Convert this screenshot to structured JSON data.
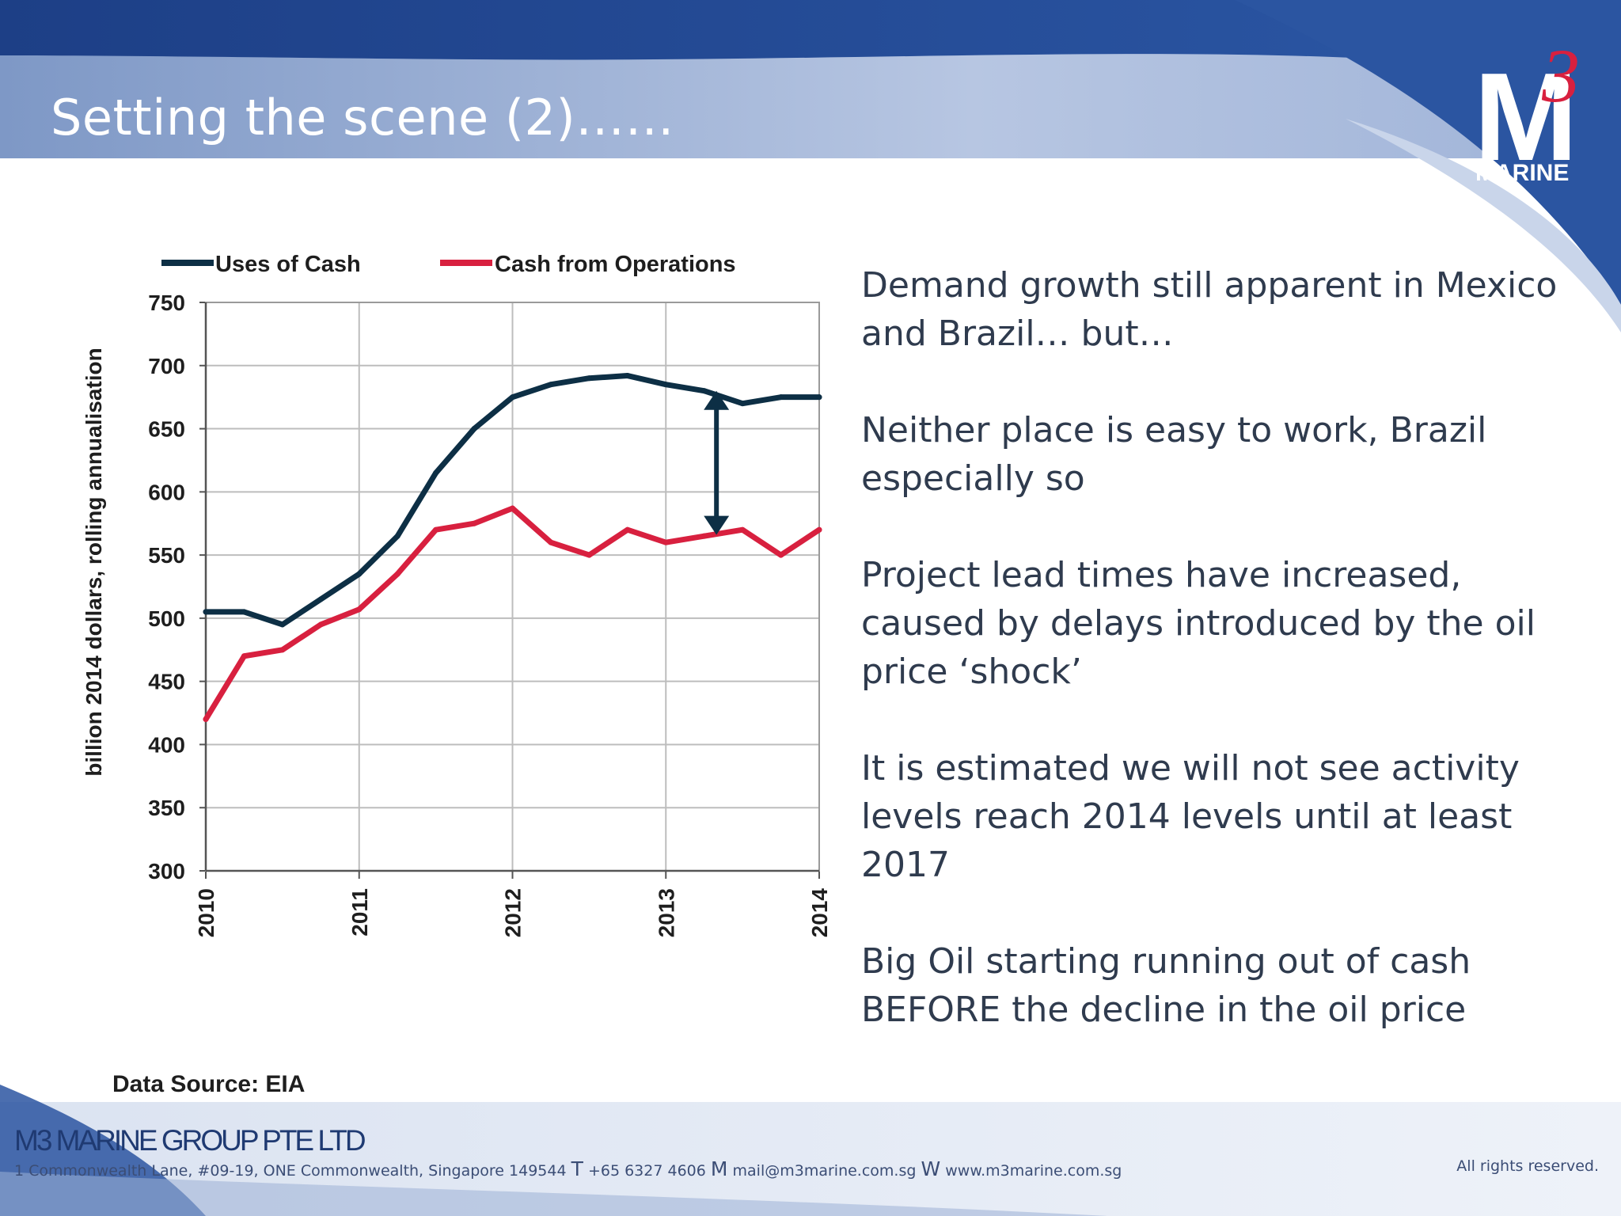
{
  "slide": {
    "title": "Setting the scene (2)……"
  },
  "logo": {
    "main": "M",
    "superscript": "3",
    "sub": "MARINE"
  },
  "body_points": [
    "Demand growth still apparent in Mexico and Brazil…   but…",
    "Neither place is easy to work, Brazil especially so",
    "Project lead times have increased, caused by delays introduced by the oil price ‘shock’",
    "It is estimated we will not see activity levels reach 2014 levels until at least 2017",
    "Big Oil starting running out of cash BEFORE the decline in the oil price"
  ],
  "data_source": "Data Source: EIA",
  "footer": {
    "company": "M3 MARINE GROUP PTE LTD",
    "address": "1 Commonwealth Lane, #09-19, ONE Commonwealth, Singapore 149544",
    "t_label": "T",
    "phone": "+65 6327 4606",
    "m_label": "M",
    "email": "mail@m3marine.com.sg",
    "w_label": "W",
    "website": "www.m3marine.com.sg",
    "rights": "All rights reserved."
  },
  "colors": {
    "uses_of_cash": "#0d2f45",
    "cash_from_operations": "#d8203f",
    "title_band": "#8ca5cf",
    "footer_text": "#3b4d75"
  },
  "chart_data": {
    "type": "line",
    "title": "",
    "xlabel": "",
    "ylabel": "billion 2014 dollars, rolling annualisation",
    "ylim": [
      300,
      750
    ],
    "xlim": [
      2010,
      2014
    ],
    "yticks": [
      "300",
      "350",
      "400",
      "450",
      "500",
      "550",
      "600",
      "650",
      "700",
      "750"
    ],
    "xticks": [
      "2010",
      "2011",
      "2012",
      "2013",
      "2014"
    ],
    "grid": true,
    "legend_position": "top",
    "series": [
      {
        "name": "Uses of Cash",
        "x": [
          2010.0,
          2010.25,
          2010.5,
          2010.75,
          2011.0,
          2011.25,
          2011.5,
          2011.75,
          2012.0,
          2012.25,
          2012.5,
          2012.75,
          2013.0,
          2013.25,
          2013.5,
          2013.75,
          2014.0
        ],
        "values": [
          505,
          505,
          495,
          515,
          535,
          565,
          615,
          650,
          675,
          685,
          690,
          692,
          685,
          680,
          670,
          675,
          675
        ]
      },
      {
        "name": "Cash from Operations",
        "x": [
          2010.0,
          2010.25,
          2010.5,
          2010.75,
          2011.0,
          2011.25,
          2011.5,
          2011.75,
          2012.0,
          2012.25,
          2012.5,
          2012.75,
          2013.0,
          2013.25,
          2013.5,
          2013.75,
          2014.0
        ],
        "values": [
          420,
          470,
          475,
          495,
          507,
          535,
          570,
          575,
          587,
          560,
          550,
          570,
          560,
          565,
          570,
          550,
          570
        ]
      }
    ],
    "annotation": {
      "type": "double-arrow",
      "x": 2013.33,
      "y_from": 680,
      "y_to": 566
    }
  }
}
